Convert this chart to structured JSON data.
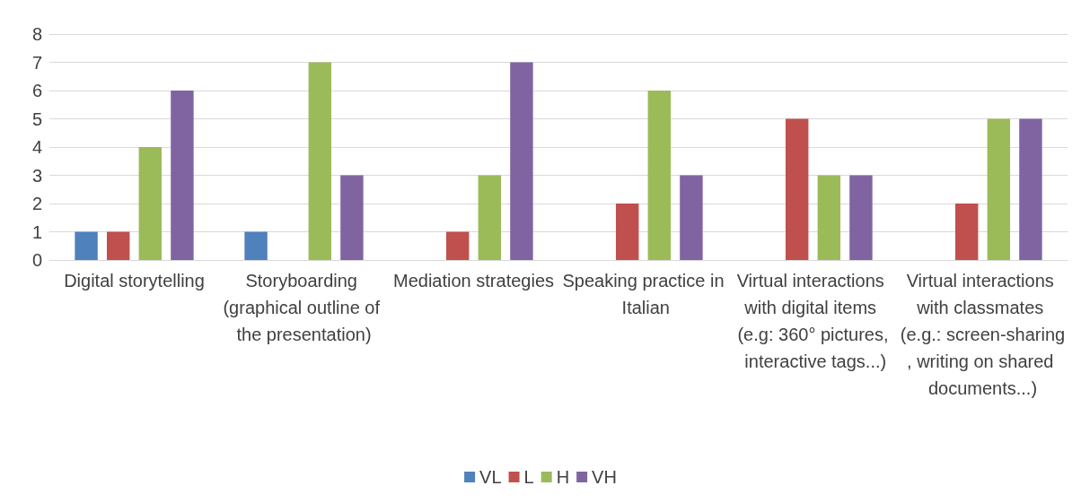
{
  "chart_data": {
    "type": "bar",
    "categories": [
      "Digital storytelling",
      "Storyboarding (graphical outline of the presentation)",
      "Mediation strategies",
      "Speaking practice in Italian",
      "Virtual interactions with digital items (e.g: 360° pictures, interactive tags...)",
      "Virtual interactions with classmates (e.g.: screen-sharing, writing on shared documents...)"
    ],
    "series": [
      {
        "name": "VL",
        "color": "#4f81bd",
        "values": [
          1,
          1,
          0,
          0,
          0,
          0
        ]
      },
      {
        "name": "L",
        "color": "#c0504d",
        "values": [
          1,
          0,
          1,
          2,
          5,
          2
        ]
      },
      {
        "name": "H",
        "color": "#9bbb59",
        "values": [
          4,
          7,
          3,
          6,
          3,
          5
        ]
      },
      {
        "name": "VH",
        "color": "#8064a2",
        "values": [
          6,
          3,
          7,
          3,
          3,
          5
        ]
      }
    ],
    "ylim": [
      0,
      8
    ],
    "yticks": [
      0,
      1,
      2,
      3,
      4,
      5,
      6,
      7,
      8
    ],
    "grid": "y",
    "legend": "bottom"
  }
}
